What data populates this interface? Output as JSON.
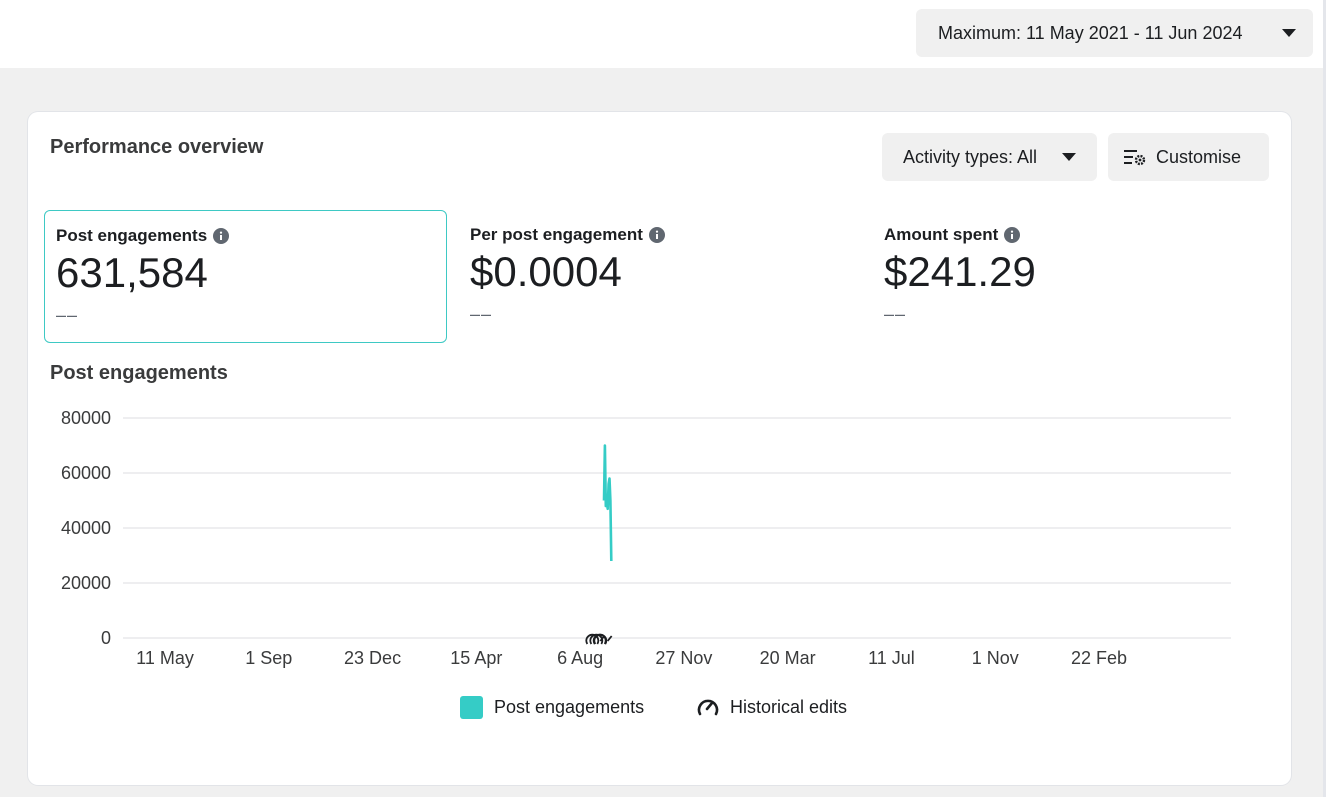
{
  "date_range": {
    "label": "Maximum: 11 May 2021 - 11 Jun 2024",
    "icon": "chevron-down-icon"
  },
  "card": {
    "title": "Performance overview",
    "activity_button": "Activity types: All",
    "customise_button": "Customise"
  },
  "metrics": [
    {
      "label": "Post engagements",
      "value": "631,584",
      "delta": "––",
      "selected": true
    },
    {
      "label": "Per post engagement",
      "value": "$0.0004",
      "delta": "––",
      "selected": false
    },
    {
      "label": "Amount spent",
      "value": "$241.29",
      "delta": "––",
      "selected": false
    }
  ],
  "chart_heading": "Post engagements",
  "colors": {
    "series": "#35ccc6",
    "grid": "#dcdde0",
    "axis_text": "#3a3b3c"
  },
  "legend": {
    "series_label": "Post engagements",
    "edits_label": "Historical edits"
  },
  "chart_data": {
    "type": "line",
    "title": "Post engagements",
    "xlabel": "",
    "ylabel": "",
    "ylim": [
      0,
      80000
    ],
    "yticks": [
      0,
      20000,
      40000,
      60000,
      80000
    ],
    "ytick_labels": [
      "0",
      "20000",
      "40000",
      "60000",
      "80000"
    ],
    "xlim": [
      "2021-05-11",
      "2024-06-11"
    ],
    "xticks": [
      "2021-05-11",
      "2021-09-01",
      "2021-12-23",
      "2022-04-15",
      "2022-08-06",
      "2022-11-27",
      "2023-03-20",
      "2023-07-11",
      "2023-11-01",
      "2024-02-22"
    ],
    "xtick_labels": [
      "11 May",
      "1 Sep",
      "23 Dec",
      "15 Apr",
      "6 Aug",
      "27 Nov",
      "20 Mar",
      "11 Jul",
      "1 Nov",
      "22 Feb"
    ],
    "grid": true,
    "legend_position": "bottom-center",
    "series": [
      {
        "name": "Post engagements",
        "points": [
          {
            "x": "2022-09-01",
            "y": 50000
          },
          {
            "x": "2022-09-02",
            "y": 70000
          },
          {
            "x": "2022-09-03",
            "y": 48000
          },
          {
            "x": "2022-09-04",
            "y": 50000
          },
          {
            "x": "2022-09-05",
            "y": 47000
          },
          {
            "x": "2022-09-06",
            "y": 56000
          },
          {
            "x": "2022-09-07",
            "y": 58000
          },
          {
            "x": "2022-09-08",
            "y": 50000
          },
          {
            "x": "2022-09-09",
            "y": 28000
          }
        ]
      }
    ],
    "historical_edits": [
      {
        "x": "2022-08-28",
        "count": 3
      },
      {
        "x": "2022-09-05",
        "count": 1
      }
    ]
  }
}
